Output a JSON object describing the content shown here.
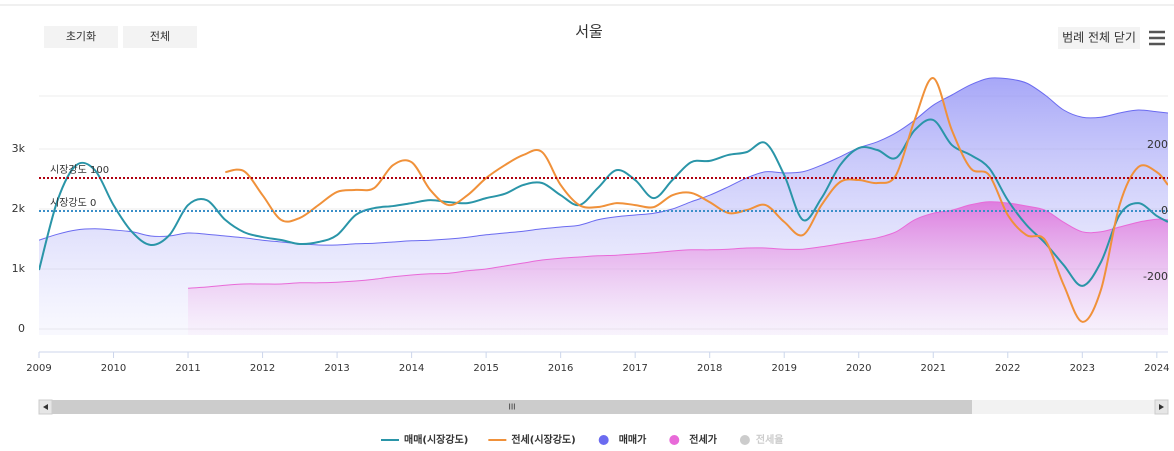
{
  "chart_data": {
    "type": "line",
    "title": "서울",
    "buttons": [
      "초기화",
      "전체"
    ],
    "legend_toggle": "범례 전체 닫기",
    "x": [
      2009,
      2009.25,
      2009.5,
      2009.75,
      2010,
      2010.25,
      2010.5,
      2010.75,
      2011,
      2011.25,
      2011.5,
      2011.75,
      2012,
      2012.25,
      2012.5,
      2012.75,
      2013,
      2013.25,
      2013.5,
      2013.75,
      2014,
      2014.25,
      2014.5,
      2014.75,
      2015,
      2015.25,
      2015.5,
      2015.75,
      2016,
      2016.25,
      2016.5,
      2016.75,
      2017,
      2017.25,
      2017.5,
      2017.75,
      2018,
      2018.25,
      2018.5,
      2018.75,
      2019,
      2019.25,
      2019.5,
      2019.75,
      2020,
      2020.25,
      2020.5,
      2020.75,
      2021,
      2021.25,
      2021.5,
      2021.75,
      2022,
      2022.25,
      2022.5,
      2022.75,
      2023,
      2023.25,
      2023.5,
      2023.75,
      2024,
      2024.15
    ],
    "xlim": [
      2009,
      2024.15
    ],
    "xticks": [
      2009,
      2010,
      2011,
      2012,
      2013,
      2014,
      2015,
      2016,
      2017,
      2018,
      2019,
      2020,
      2021,
      2022,
      2023,
      2024
    ],
    "ylim": [
      -100,
      4500
    ],
    "yticks": [
      0,
      {
        "value": 1000,
        "label": "1k"
      },
      {
        "value": 2000,
        "label": "2k"
      },
      {
        "value": 3000,
        "label": "3k"
      }
    ],
    "y2lim": [
      -376,
      461
    ],
    "y2ticks": [
      -200,
      0,
      200
    ],
    "grid": true,
    "series": [
      {
        "name": "매매가",
        "color": "#6b6bf0",
        "area": true,
        "values": [
          1480,
          1580,
          1650,
          1670,
          1650,
          1620,
          1550,
          1550,
          1600,
          1580,
          1550,
          1520,
          1480,
          1450,
          1420,
          1400,
          1400,
          1420,
          1430,
          1450,
          1470,
          1480,
          1500,
          1530,
          1570,
          1600,
          1630,
          1670,
          1700,
          1730,
          1820,
          1870,
          1900,
          1930,
          2000,
          2120,
          2230,
          2370,
          2520,
          2620,
          2600,
          2620,
          2730,
          2870,
          3020,
          3120,
          3270,
          3480,
          3730,
          3900,
          4070,
          4180,
          4170,
          4100,
          3900,
          3650,
          3530,
          3530,
          3600,
          3650,
          3620,
          3600
        ]
      },
      {
        "name": "전세가",
        "color": "#e86ad8",
        "area": true,
        "values": [
          null,
          null,
          null,
          null,
          null,
          null,
          null,
          null,
          680,
          700,
          730,
          750,
          750,
          750,
          770,
          770,
          780,
          800,
          830,
          870,
          900,
          920,
          930,
          970,
          1000,
          1050,
          1100,
          1150,
          1180,
          1200,
          1220,
          1230,
          1250,
          1270,
          1300,
          1320,
          1320,
          1330,
          1350,
          1350,
          1330,
          1330,
          1370,
          1420,
          1470,
          1520,
          1620,
          1820,
          1930,
          1980,
          2070,
          2120,
          2100,
          2050,
          1980,
          1780,
          1620,
          1620,
          1700,
          1780,
          1830,
          1820
        ]
      },
      {
        "name": "매매(시장강도)",
        "color": "#2a95a8",
        "axis": "y2",
        "values": [
          -179,
          33,
          139,
          124,
          18,
          -64,
          -103,
          -73,
          18,
          33,
          -27,
          -64,
          -79,
          -88,
          -100,
          -94,
          -73,
          -12,
          9,
          15,
          24,
          33,
          27,
          24,
          39,
          52,
          79,
          85,
          48,
          18,
          70,
          124,
          94,
          39,
          94,
          148,
          152,
          170,
          179,
          206,
          109,
          -27,
          39,
          139,
          191,
          185,
          161,
          245,
          276,
          200,
          170,
          130,
          33,
          -42,
          -97,
          -164,
          -227,
          -155,
          -12,
          24,
          -15,
          -33
        ]
      },
      {
        "name": "전세(시장강도)",
        "color": "#f0913a",
        "axis": "y2",
        "values": [
          null,
          null,
          null,
          null,
          null,
          null,
          null,
          null,
          null,
          null,
          118,
          121,
          48,
          -27,
          -21,
          18,
          58,
          64,
          70,
          139,
          148,
          64,
          18,
          48,
          100,
          139,
          170,
          179,
          79,
          18,
          12,
          24,
          18,
          12,
          48,
          55,
          27,
          -6,
          3,
          18,
          -33,
          -73,
          18,
          88,
          94,
          85,
          109,
          276,
          403,
          245,
          130,
          109,
          -12,
          -73,
          -88,
          -224,
          -336,
          -239,
          18,
          133,
          118,
          79
        ]
      }
    ],
    "legend_order": [
      2,
      3,
      0,
      1
    ],
    "legend_hidden": [
      "전세율"
    ],
    "reference_lines": [
      {
        "label": "시장강도 100",
        "value": 100,
        "axis": "y2",
        "color": "#b00010"
      },
      {
        "label": "시장강도 0",
        "value": 0,
        "axis": "y2",
        "color": "#3a8fc8"
      }
    ]
  }
}
